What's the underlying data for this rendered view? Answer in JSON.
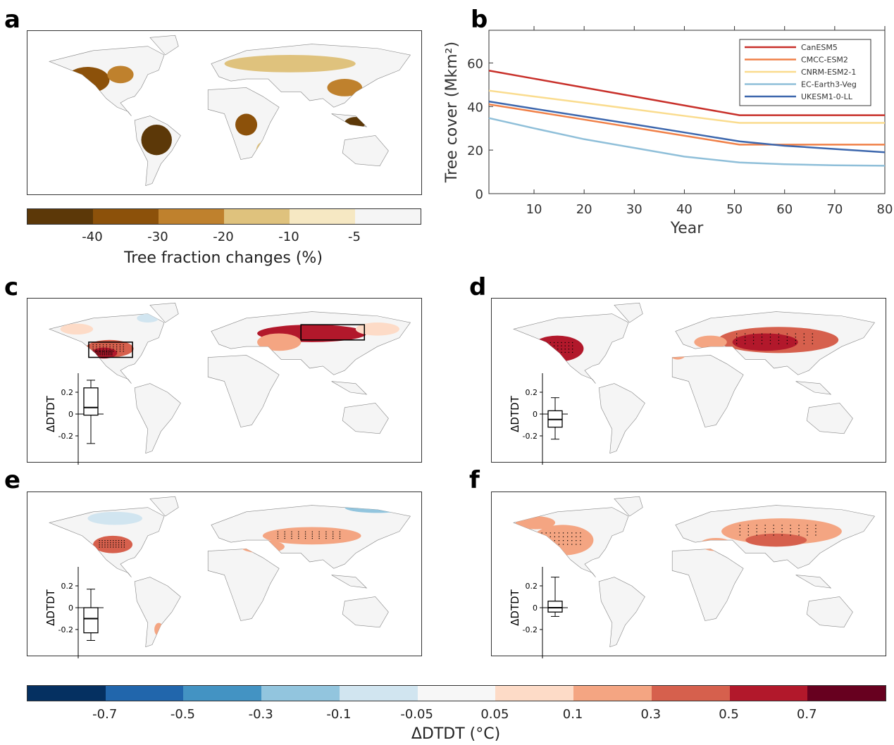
{
  "panels": {
    "a": "a",
    "b": "b",
    "c": "c",
    "d": "d",
    "e": "e",
    "f": "f"
  },
  "colorbar_top": {
    "title": "Tree fraction changes (%)",
    "colors": [
      "#5c3808",
      "#8c510a",
      "#bf812d",
      "#dfc27d",
      "#f6e8c3",
      "#f5f5f5"
    ],
    "ticks": [
      "-40",
      "-30",
      "-20",
      "-10",
      "-5"
    ]
  },
  "colorbar_bottom": {
    "title": "ΔDTDT (°C)",
    "colors": [
      "#053061",
      "#2166ac",
      "#4393c3",
      "#92c5de",
      "#d1e5f0",
      "#f7f7f7",
      "#fddbc7",
      "#f4a582",
      "#d6604d",
      "#b2182b",
      "#67001f"
    ],
    "ticks": [
      "-0.7",
      "-0.5",
      "-0.3",
      "-0.1",
      "-0.05",
      "0.05",
      "0.1",
      "0.3",
      "0.5",
      "0.7"
    ]
  },
  "chart_data": [
    {
      "type": "line",
      "panel": "b",
      "xlabel": "Year",
      "ylabel": "Tree cover (Mkm²)",
      "xlim": [
        1,
        80
      ],
      "ylim": [
        0,
        75
      ],
      "xticks": [
        10,
        20,
        30,
        40,
        50,
        60,
        70,
        80
      ],
      "yticks": [
        0,
        20,
        40,
        60
      ],
      "legend": "top-right",
      "x": [
        1,
        10,
        20,
        30,
        40,
        51,
        60,
        70,
        80
      ],
      "series": [
        {
          "name": "CanESM5",
          "color": "#c8302a",
          "values": [
            56.5,
            52.8,
            48.7,
            44.6,
            40.5,
            36,
            36,
            36,
            36
          ]
        },
        {
          "name": "CMCC-ESM2",
          "color": "#f08048",
          "values": [
            41,
            37.7,
            34,
            30.3,
            26.6,
            22.5,
            22.5,
            22.5,
            22.5
          ]
        },
        {
          "name": "CNRM-ESM2-1",
          "color": "#fadc8e",
          "values": [
            47.3,
            44.6,
            41.7,
            38.7,
            35.7,
            32.5,
            32.5,
            32.5,
            32.5
          ]
        },
        {
          "name": "EC-Earth3-Veg",
          "color": "#8fbfd9",
          "values": [
            34.7,
            30,
            25,
            21,
            17,
            14.3,
            13.5,
            13,
            12.8
          ]
        },
        {
          "name": "UKESM1-0-LL",
          "color": "#3d67ad",
          "values": [
            42.3,
            39,
            35.4,
            31.8,
            28.1,
            24,
            22,
            20.5,
            19
          ]
        }
      ]
    },
    {
      "type": "box",
      "panel": "c",
      "ylabel": "ΔDTDT",
      "yticks": [
        "0.2",
        "0",
        "-0.2"
      ],
      "whisker_high": 0.31,
      "q3": 0.24,
      "median": 0.06,
      "q1": -0.01,
      "whisker_low": -0.27
    },
    {
      "type": "box",
      "panel": "d",
      "ylabel": "ΔDTDT",
      "yticks": [
        "0.2",
        "0",
        "-0.2"
      ],
      "whisker_high": 0.15,
      "q3": 0.03,
      "median": -0.05,
      "q1": -0.12,
      "whisker_low": -0.23
    },
    {
      "type": "box",
      "panel": "e",
      "ylabel": "ΔDTDT",
      "yticks": [
        "0.2",
        "0",
        "-0.2"
      ],
      "whisker_high": 0.17,
      "q3": 0.0,
      "median": -0.1,
      "q1": -0.23,
      "whisker_low": -0.3
    },
    {
      "type": "box",
      "panel": "f",
      "ylabel": "ΔDTDT",
      "yticks": [
        "0.2",
        "0",
        "-0.2"
      ],
      "whisker_high": 0.28,
      "q3": 0.06,
      "median": 0.0,
      "q1": -0.04,
      "whisker_low": -0.08
    }
  ]
}
